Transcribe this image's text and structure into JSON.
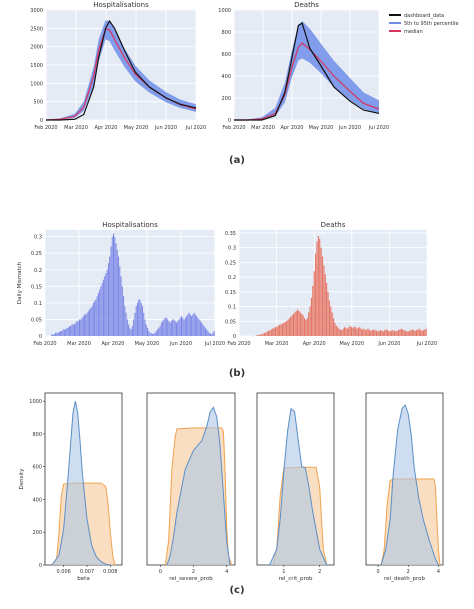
{
  "panel_labels": {
    "a": "(a)",
    "b": "(b)",
    "c": "(c)"
  },
  "colors": {
    "band": "#6f8ee8",
    "median": "#d6365e",
    "dashboard": "#111111",
    "bar_hosp": "#7b86e6",
    "bar_death": "#e67462",
    "kde_blue": "#5b8fc7",
    "kde_blue_fill": "#aec6e6",
    "kde_orange": "#f0a24f",
    "kde_orange_fill": "#f6c898",
    "panel_bg": "#e5ebf5",
    "grid": "#ffffff"
  },
  "legend": [
    "dashboard_data",
    "5th to 95th percentile",
    "median"
  ],
  "chart_data": [
    {
      "id": "a_hosp",
      "type": "line",
      "title": "Hospitalisations",
      "x_ticks": [
        "Feb 2020",
        "Mar 2020",
        "Apr 2020",
        "May 2020",
        "Jun 2020",
        "Jul 2020"
      ],
      "y_ticks": [
        "0",
        "500",
        "1000",
        "1500",
        "2000",
        "2500",
        "3000"
      ],
      "ylim": [
        0,
        3000
      ],
      "grid": true,
      "legend": "none",
      "x": [
        "Feb 1",
        "Feb 15",
        "Mar 1",
        "Mar 10",
        "Mar 20",
        "Mar 25",
        "Apr 1",
        "Apr 5",
        "Apr 10",
        "Apr 20",
        "May 1",
        "May 15",
        "Jun 1",
        "Jun 15",
        "Jul 1"
      ],
      "series": [
        {
          "name": "dashboard_data",
          "values": [
            0,
            0,
            20,
            150,
            900,
            1700,
            2500,
            2700,
            2500,
            1900,
            1300,
            900,
            600,
            430,
            330
          ]
        },
        {
          "name": "median",
          "values": [
            0,
            20,
            100,
            350,
            1200,
            1900,
            2480,
            2460,
            2200,
            1700,
            1250,
            900,
            600,
            420,
            300
          ]
        },
        {
          "name": "5th to 95th percentile",
          "lower": [
            0,
            10,
            60,
            250,
            950,
            1600,
            2200,
            2150,
            1900,
            1450,
            1050,
            750,
            480,
            330,
            220
          ],
          "upper": [
            0,
            40,
            170,
            500,
            1450,
            2200,
            2720,
            2700,
            2450,
            1950,
            1480,
            1080,
            760,
            560,
            430
          ]
        }
      ]
    },
    {
      "id": "a_death",
      "type": "line",
      "title": "Deaths",
      "x_ticks": [
        "Feb 2020",
        "Mar 2020",
        "Apr 2020",
        "May 2020",
        "Jun 2020",
        "Jul 2020"
      ],
      "y_ticks": [
        "0",
        "200",
        "400",
        "600",
        "800",
        "1000"
      ],
      "ylim": [
        0,
        1000
      ],
      "grid": true,
      "legend": "top-right",
      "x": [
        "Feb 1",
        "Feb 15",
        "Mar 1",
        "Mar 15",
        "Mar 25",
        "Apr 1",
        "Apr 8",
        "Apr 12",
        "Apr 20",
        "May 1",
        "May 15",
        "Jun 1",
        "Jun 15",
        "Jul 1"
      ],
      "series": [
        {
          "name": "dashboard_data",
          "values": [
            0,
            0,
            0,
            40,
            250,
            550,
            860,
            880,
            650,
            500,
            300,
            170,
            90,
            60
          ]
        },
        {
          "name": "median",
          "values": [
            0,
            0,
            10,
            60,
            230,
            470,
            660,
            700,
            640,
            540,
            400,
            260,
            150,
            100
          ]
        },
        {
          "name": "5th to 95th percentile",
          "lower": [
            0,
            0,
            5,
            35,
            160,
            380,
            540,
            560,
            520,
            430,
            300,
            180,
            100,
            60
          ],
          "upper": [
            0,
            5,
            25,
            110,
            340,
            620,
            860,
            900,
            830,
            700,
            540,
            380,
            250,
            180
          ]
        }
      ]
    },
    {
      "id": "b_hosp",
      "type": "bar",
      "title": "Hospitalisations",
      "ylabel": "Daily Mismatch",
      "x_ticks": [
        "Feb 2020",
        "Mar 2020",
        "Apr 2020",
        "May 2020",
        "Jun 2020",
        "Jul 2020"
      ],
      "y_ticks": [
        "0",
        "0.05",
        "0.1",
        "0.15",
        "0.2",
        "0.25",
        "0.3"
      ],
      "ylim": [
        0,
        0.32
      ],
      "grid": true,
      "values": [
        0.0,
        0.0,
        0.0,
        0.0,
        0.0,
        0.005,
        0.005,
        0.005,
        0.01,
        0.01,
        0.01,
        0.012,
        0.015,
        0.015,
        0.02,
        0.02,
        0.02,
        0.025,
        0.025,
        0.03,
        0.03,
        0.035,
        0.035,
        0.035,
        0.04,
        0.045,
        0.045,
        0.05,
        0.05,
        0.055,
        0.06,
        0.065,
        0.065,
        0.07,
        0.075,
        0.08,
        0.085,
        0.09,
        0.1,
        0.105,
        0.11,
        0.12,
        0.13,
        0.14,
        0.15,
        0.16,
        0.17,
        0.18,
        0.19,
        0.2,
        0.22,
        0.24,
        0.27,
        0.3,
        0.31,
        0.3,
        0.28,
        0.26,
        0.24,
        0.21,
        0.18,
        0.15,
        0.12,
        0.09,
        0.07,
        0.05,
        0.035,
        0.025,
        0.02,
        0.03,
        0.05,
        0.07,
        0.09,
        0.1,
        0.11,
        0.11,
        0.1,
        0.09,
        0.07,
        0.05,
        0.035,
        0.025,
        0.015,
        0.01,
        0.008,
        0.006,
        0.008,
        0.01,
        0.015,
        0.02,
        0.025,
        0.03,
        0.04,
        0.045,
        0.05,
        0.055,
        0.055,
        0.05,
        0.045,
        0.04,
        0.045,
        0.05,
        0.05,
        0.045,
        0.04,
        0.045,
        0.05,
        0.055,
        0.06,
        0.055,
        0.05,
        0.055,
        0.06,
        0.065,
        0.07,
        0.065,
        0.06,
        0.065,
        0.07,
        0.065,
        0.06,
        0.055,
        0.05,
        0.045,
        0.04,
        0.035,
        0.03,
        0.025,
        0.02,
        0.015,
        0.01,
        0.008,
        0.005,
        0.01,
        0.015
      ]
    },
    {
      "id": "b_death",
      "type": "bar",
      "title": "Deaths",
      "x_ticks": [
        "Feb 2020",
        "Mar 2020",
        "Apr 2020",
        "May 2020",
        "Jun 2020",
        "Jul 2020"
      ],
      "y_ticks": [
        "0",
        "0.05",
        "0.1",
        "0.15",
        "0.2",
        "0.25",
        "0.3",
        "0.35"
      ],
      "ylim": [
        0,
        0.36
      ],
      "grid": true,
      "values": [
        0.0,
        0.0,
        0.0,
        0.0,
        0.0,
        0.0,
        0.0,
        0.0,
        0.0,
        0.0,
        0.0,
        0.0,
        0.002,
        0.003,
        0.004,
        0.005,
        0.006,
        0.008,
        0.01,
        0.012,
        0.015,
        0.018,
        0.02,
        0.022,
        0.025,
        0.028,
        0.03,
        0.032,
        0.035,
        0.038,
        0.04,
        0.042,
        0.045,
        0.048,
        0.05,
        0.055,
        0.06,
        0.065,
        0.07,
        0.075,
        0.08,
        0.085,
        0.09,
        0.085,
        0.08,
        0.075,
        0.07,
        0.06,
        0.055,
        0.06,
        0.08,
        0.1,
        0.13,
        0.17,
        0.22,
        0.28,
        0.32,
        0.34,
        0.33,
        0.3,
        0.27,
        0.24,
        0.21,
        0.18,
        0.15,
        0.12,
        0.1,
        0.08,
        0.06,
        0.045,
        0.035,
        0.03,
        0.025,
        0.022,
        0.02,
        0.025,
        0.03,
        0.028,
        0.025,
        0.03,
        0.035,
        0.03,
        0.028,
        0.032,
        0.03,
        0.025,
        0.028,
        0.03,
        0.025,
        0.022,
        0.025,
        0.02,
        0.022,
        0.025,
        0.02,
        0.018,
        0.02,
        0.022,
        0.02,
        0.018,
        0.016,
        0.018,
        0.02,
        0.018,
        0.016,
        0.02,
        0.022,
        0.02,
        0.018,
        0.016,
        0.018,
        0.02,
        0.018,
        0.016,
        0.018,
        0.02,
        0.022,
        0.025,
        0.022,
        0.02,
        0.018,
        0.016,
        0.015,
        0.018,
        0.02,
        0.022,
        0.02,
        0.018,
        0.02,
        0.022,
        0.025,
        0.02,
        0.018,
        0.02,
        0.022,
        0.025
      ]
    },
    {
      "id": "c_beta",
      "type": "area",
      "xlabel": "beta",
      "ylabel": "Density",
      "x_ticks": [
        "0.006",
        "0.007",
        "0.008"
      ],
      "x_tick_values": [
        0.006,
        0.007,
        0.008
      ],
      "xlim": [
        0.0052,
        0.0085
      ],
      "y_ticks": [
        "0",
        "200",
        "400",
        "600",
        "800",
        "1000"
      ],
      "ylim": [
        0,
        1050
      ],
      "series": [
        {
          "name": "",
          "color": "blue",
          "x": [
            0.0055,
            0.0058,
            0.006,
            0.0062,
            0.0064,
            0.0065,
            0.0066,
            0.0067,
            0.0068,
            0.007,
            0.0072,
            0.0074,
            0.0076,
            0.0078,
            0.008
          ],
          "y": [
            0,
            60,
            220,
            560,
            930,
            1000,
            930,
            760,
            560,
            280,
            120,
            50,
            20,
            5,
            0
          ]
        },
        {
          "name": "",
          "color": "orange",
          "x": [
            0.0055,
            0.0057,
            0.0058,
            0.0059,
            0.006,
            0.0065,
            0.0072,
            0.0076,
            0.0078,
            0.0079,
            0.008,
            0.0081,
            0.0082
          ],
          "y": [
            0,
            40,
            200,
            420,
            495,
            500,
            500,
            500,
            480,
            380,
            200,
            60,
            0
          ]
        }
      ]
    },
    {
      "id": "c_severe",
      "type": "area",
      "xlabel": "rel_severe_prob",
      "x_ticks": [
        "0",
        "2",
        "4"
      ],
      "x_tick_values": [
        0,
        2,
        4
      ],
      "xlim": [
        -0.8,
        4.5
      ],
      "y_ticks": [],
      "ylim": [
        0,
        0.36
      ],
      "series": [
        {
          "name": "",
          "color": "blue",
          "x": [
            0.4,
            0.6,
            0.8,
            1.0,
            1.5,
            2.0,
            2.5,
            2.8,
            3.0,
            3.2,
            3.4,
            3.6,
            3.8,
            4.0,
            4.2
          ],
          "y": [
            0,
            0.02,
            0.06,
            0.11,
            0.2,
            0.24,
            0.26,
            0.29,
            0.32,
            0.33,
            0.31,
            0.25,
            0.15,
            0.05,
            0
          ]
        },
        {
          "name": "",
          "color": "orange",
          "x": [
            0.3,
            0.5,
            0.7,
            0.9,
            1.0,
            2.0,
            3.0,
            3.7,
            3.8,
            3.9,
            4.0,
            4.1,
            4.3
          ],
          "y": [
            0,
            0.05,
            0.2,
            0.27,
            0.285,
            0.287,
            0.287,
            0.287,
            0.28,
            0.2,
            0.08,
            0.02,
            0
          ]
        }
      ]
    },
    {
      "id": "c_crit",
      "type": "area",
      "xlabel": "rel_crit_prob",
      "x_ticks": [
        "1",
        "2"
      ],
      "x_tick_values": [
        1,
        2
      ],
      "xlim": [
        0.25,
        2.4
      ],
      "y_ticks": [],
      "ylim": [
        0,
        1.1
      ],
      "series": [
        {
          "name": "",
          "color": "blue",
          "x": [
            0.6,
            0.8,
            0.9,
            1.0,
            1.1,
            1.2,
            1.3,
            1.4,
            1.5,
            1.6,
            1.7,
            1.8,
            2.0,
            2.2
          ],
          "y": [
            0,
            0.1,
            0.3,
            0.6,
            0.85,
            1.0,
            0.98,
            0.8,
            0.63,
            0.62,
            0.5,
            0.35,
            0.1,
            0
          ]
        },
        {
          "name": "",
          "color": "orange",
          "x": [
            0.7,
            0.8,
            0.9,
            1.0,
            1.5,
            1.9,
            2.0,
            2.05,
            2.1,
            2.2
          ],
          "y": [
            0,
            0.1,
            0.45,
            0.62,
            0.625,
            0.625,
            0.5,
            0.3,
            0.1,
            0
          ]
        }
      ]
    },
    {
      "id": "c_death",
      "type": "area",
      "xlabel": "rel_death_prob",
      "x_ticks": [
        "0",
        "2",
        "4"
      ],
      "x_tick_values": [
        0,
        2,
        4
      ],
      "xlim": [
        -0.8,
        4.3
      ],
      "y_ticks": [],
      "ylim": [
        0,
        0.57
      ],
      "series": [
        {
          "name": "",
          "color": "blue",
          "x": [
            0.2,
            0.5,
            0.8,
            1.0,
            1.3,
            1.6,
            1.8,
            2.0,
            2.2,
            2.4,
            2.7,
            3.0,
            3.4,
            3.8,
            4.0
          ],
          "y": [
            0,
            0.05,
            0.15,
            0.3,
            0.45,
            0.52,
            0.53,
            0.5,
            0.43,
            0.32,
            0.22,
            0.15,
            0.08,
            0.02,
            0
          ]
        },
        {
          "name": "",
          "color": "orange",
          "x": [
            0.2,
            0.4,
            0.6,
            0.8,
            1.0,
            2.0,
            3.0,
            3.7,
            3.8,
            3.9,
            4.0,
            4.1
          ],
          "y": [
            0,
            0.05,
            0.2,
            0.28,
            0.285,
            0.285,
            0.285,
            0.285,
            0.26,
            0.15,
            0.05,
            0
          ]
        }
      ]
    }
  ]
}
